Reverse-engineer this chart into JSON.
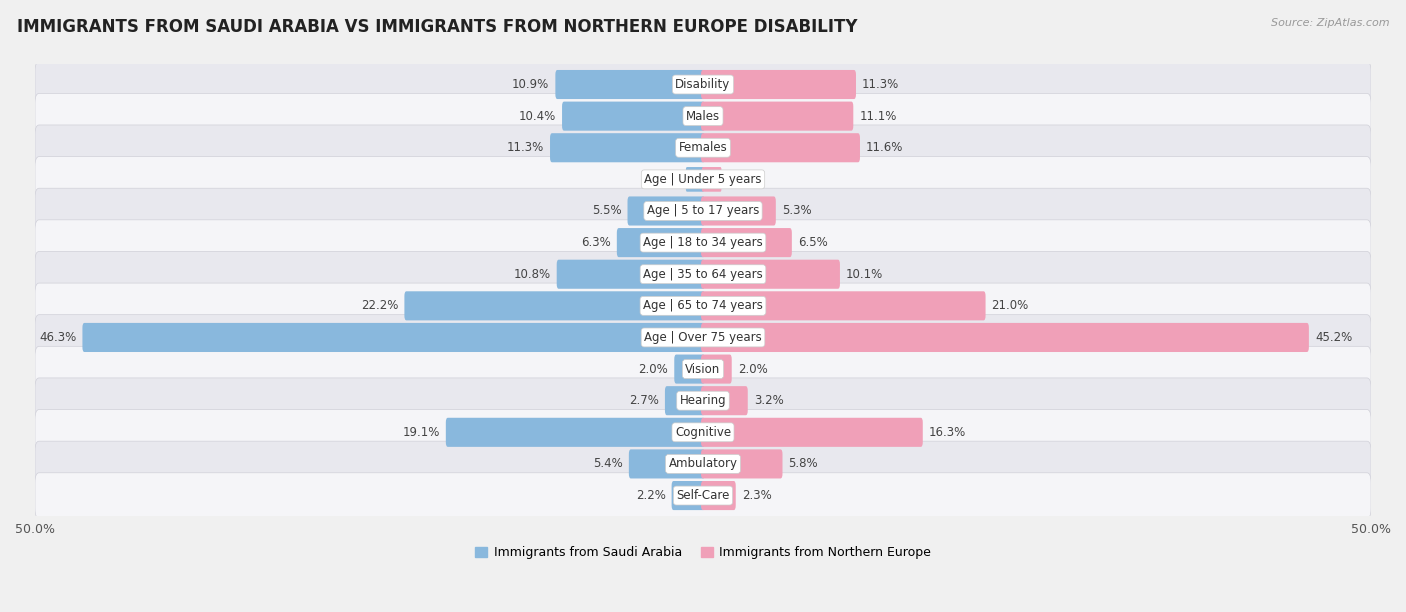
{
  "title": "IMMIGRANTS FROM SAUDI ARABIA VS IMMIGRANTS FROM NORTHERN EUROPE DISABILITY",
  "source": "Source: ZipAtlas.com",
  "categories": [
    "Disability",
    "Males",
    "Females",
    "Age | Under 5 years",
    "Age | 5 to 17 years",
    "Age | 18 to 34 years",
    "Age | 35 to 64 years",
    "Age | 65 to 74 years",
    "Age | Over 75 years",
    "Vision",
    "Hearing",
    "Cognitive",
    "Ambulatory",
    "Self-Care"
  ],
  "left_values": [
    10.9,
    10.4,
    11.3,
    1.2,
    5.5,
    6.3,
    10.8,
    22.2,
    46.3,
    2.0,
    2.7,
    19.1,
    5.4,
    2.2
  ],
  "right_values": [
    11.3,
    11.1,
    11.6,
    1.3,
    5.3,
    6.5,
    10.1,
    21.0,
    45.2,
    2.0,
    3.2,
    16.3,
    5.8,
    2.3
  ],
  "left_color": "#89b8dd",
  "right_color": "#f0a0b8",
  "left_label": "Immigrants from Saudi Arabia",
  "right_label": "Immigrants from Northern Europe",
  "axis_max": 50.0,
  "bg_color": "#f0f0f0",
  "row_color_even": "#e8e8ee",
  "row_color_odd": "#f5f5f8",
  "title_fontsize": 12,
  "source_fontsize": 8,
  "label_fontsize": 9,
  "value_fontsize": 8.5,
  "category_fontsize": 8.5,
  "legend_fontsize": 9
}
